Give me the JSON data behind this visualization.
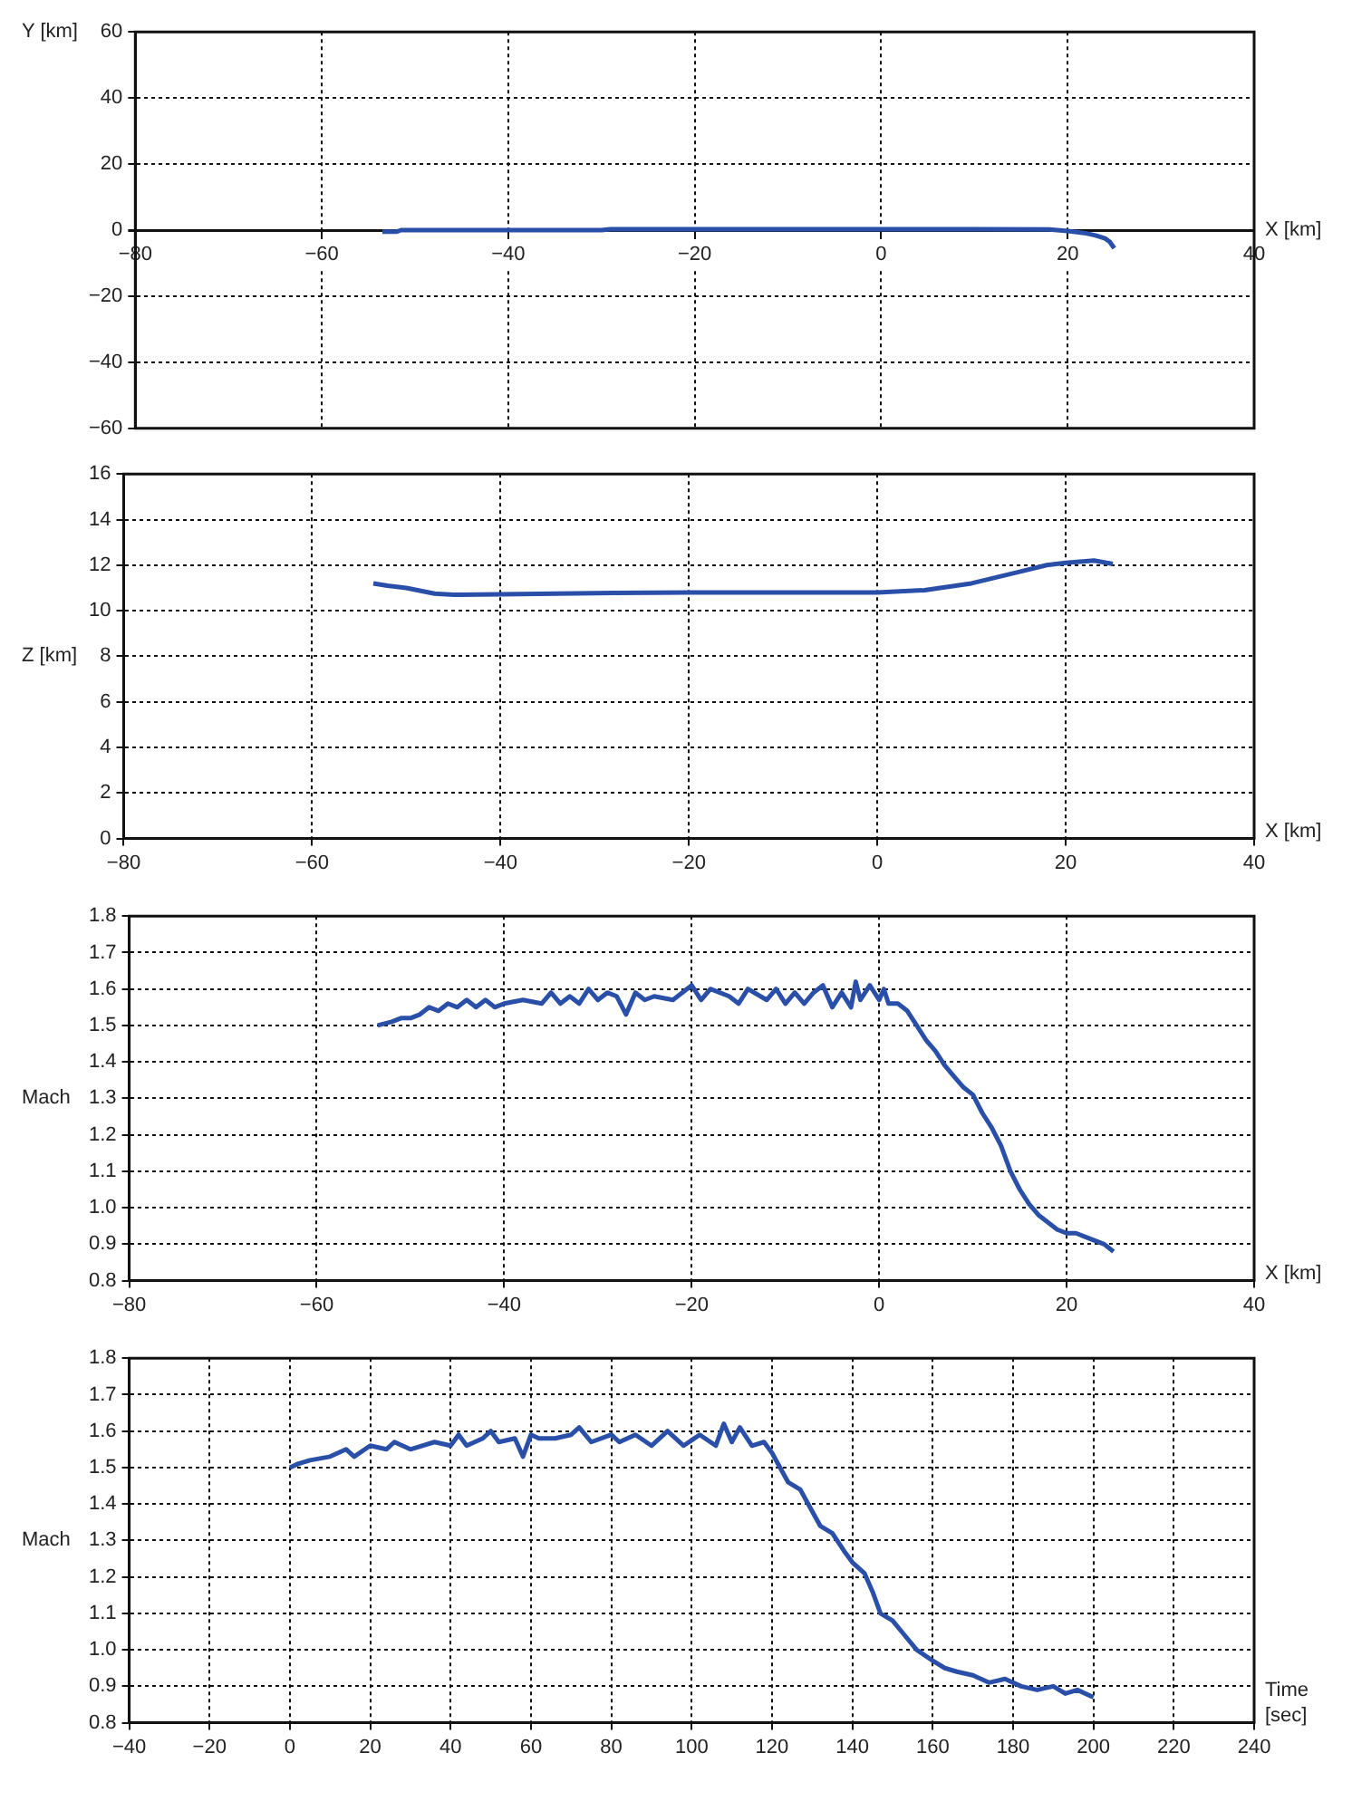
{
  "chart_data": [
    {
      "type": "line",
      "xlabel": "X [km]",
      "ylabel": "Y [km]",
      "xlim": [
        -80,
        40
      ],
      "xticks": [
        -80,
        -60,
        -40,
        -20,
        0,
        20,
        40
      ],
      "ylim": [
        -60,
        60
      ],
      "yticks": [
        -60,
        -40,
        -20,
        0,
        20,
        40,
        60
      ],
      "grid": true,
      "legend": false,
      "marker": "none",
      "line_style": "solid",
      "series": [
        {
          "color": "#2a4fa8",
          "x": [
            -53.5,
            -52,
            -51.5,
            -40,
            -30,
            -29,
            -10,
            0,
            10,
            18,
            20,
            21,
            22,
            23,
            24,
            24.5,
            25
          ],
          "values": [
            -0.5,
            -0.5,
            0,
            0,
            0,
            0.3,
            0.3,
            0.3,
            0.3,
            0.2,
            -0.3,
            -0.6,
            -1,
            -1.6,
            -2.5,
            -3.5,
            -5.5
          ]
        }
      ]
    },
    {
      "type": "line",
      "xlabel": "X [km]",
      "ylabel": "Z [km]",
      "xlim": [
        -80,
        40
      ],
      "xticks": [
        -80,
        -60,
        -40,
        -20,
        0,
        20,
        40
      ],
      "ylim": [
        0,
        16
      ],
      "yticks": [
        0,
        2,
        4,
        6,
        8,
        10,
        12,
        14,
        16
      ],
      "grid": true,
      "legend": false,
      "marker": "none",
      "line_style": "solid",
      "series": [
        {
          "color": "#2a4fa8",
          "x": [
            -53.5,
            -52,
            -50,
            -47,
            -45,
            -40,
            -28,
            -20,
            0,
            5,
            10,
            15,
            18,
            20,
            23,
            25
          ],
          "values": [
            11.2,
            11.1,
            11.0,
            10.75,
            10.7,
            10.72,
            10.78,
            10.8,
            10.8,
            10.9,
            11.2,
            11.7,
            12.0,
            12.1,
            12.2,
            12.05
          ]
        }
      ]
    },
    {
      "type": "line",
      "xlabel": "X [km]",
      "ylabel": "Mach",
      "xlim": [
        -80,
        40
      ],
      "xticks": [
        -80,
        -60,
        -40,
        -20,
        0,
        20,
        40
      ],
      "ylim": [
        0.8,
        1.8
      ],
      "yticks": [
        0.8,
        0.9,
        {
          "value": 1,
          "label": "1.0"
        },
        1.1,
        1.2,
        1.3,
        1.4,
        1.5,
        1.6,
        1.7,
        1.8
      ],
      "grid": true,
      "legend": false,
      "marker": "none",
      "line_style": "solid",
      "series": [
        {
          "color": "#2a4fa8",
          "x": [
            -53.5,
            -52,
            -51,
            -50,
            -49,
            -48,
            -47,
            -46,
            -45,
            -44,
            -43,
            -42,
            -41,
            -40,
            -38,
            -36,
            -35,
            -34,
            -33,
            -32,
            -31,
            -30,
            -29,
            -28,
            -27,
            -26,
            -25,
            -24,
            -22,
            -21,
            -20,
            -19,
            -18,
            -16,
            -15,
            -14,
            -12,
            -11,
            -10,
            -9,
            -8,
            -7,
            -6,
            -5,
            -4,
            -3,
            -2.5,
            -2,
            -1,
            0,
            0.5,
            1,
            2,
            3,
            4,
            5,
            6,
            7,
            8,
            9,
            10,
            11,
            12,
            13,
            14,
            15,
            16,
            17,
            18,
            19,
            20,
            21,
            22,
            23,
            24,
            25
          ],
          "values": [
            1.5,
            1.51,
            1.52,
            1.52,
            1.53,
            1.55,
            1.54,
            1.56,
            1.55,
            1.57,
            1.55,
            1.57,
            1.55,
            1.56,
            1.57,
            1.56,
            1.59,
            1.56,
            1.58,
            1.56,
            1.6,
            1.57,
            1.59,
            1.58,
            1.53,
            1.59,
            1.57,
            1.58,
            1.57,
            1.59,
            1.61,
            1.57,
            1.6,
            1.58,
            1.56,
            1.6,
            1.57,
            1.6,
            1.56,
            1.59,
            1.56,
            1.59,
            1.61,
            1.55,
            1.59,
            1.55,
            1.62,
            1.57,
            1.61,
            1.57,
            1.6,
            1.56,
            1.56,
            1.54,
            1.5,
            1.46,
            1.43,
            1.39,
            1.36,
            1.33,
            1.31,
            1.26,
            1.22,
            1.17,
            1.1,
            1.05,
            1.01,
            0.98,
            0.96,
            0.94,
            0.93,
            0.93,
            0.92,
            0.91,
            0.9,
            0.88
          ]
        }
      ]
    },
    {
      "type": "line",
      "xlabel": "Time [sec]",
      "ylabel": "Mach",
      "xlim": [
        -40,
        240
      ],
      "xticks": [
        -40,
        -20,
        0,
        20,
        40,
        60,
        80,
        100,
        120,
        140,
        160,
        180,
        200,
        220,
        240
      ],
      "ylim": [
        0.8,
        1.8
      ],
      "yticks": [
        0.8,
        0.9,
        {
          "value": 1,
          "label": "1.0"
        },
        1.1,
        1.2,
        1.3,
        1.4,
        1.5,
        1.6,
        1.7,
        1.8
      ],
      "grid": true,
      "legend": false,
      "marker": "none",
      "line_style": "solid",
      "series": [
        {
          "color": "#2a4fa8",
          "x": [
            0,
            2,
            5,
            10,
            14,
            16,
            20,
            24,
            26,
            30,
            36,
            40,
            42,
            44,
            48,
            50,
            52,
            56,
            58,
            60,
            62,
            66,
            70,
            72,
            75,
            80,
            82,
            86,
            90,
            94,
            98,
            102,
            106,
            108,
            110,
            112,
            115,
            118,
            120,
            122,
            124,
            127,
            130,
            132,
            135,
            138,
            140,
            143,
            145,
            147,
            150,
            153,
            156,
            160,
            163,
            166,
            170,
            174,
            178,
            182,
            186,
            190,
            193,
            196,
            200
          ],
          "values": [
            1.5,
            1.51,
            1.52,
            1.53,
            1.55,
            1.53,
            1.56,
            1.55,
            1.57,
            1.55,
            1.57,
            1.56,
            1.59,
            1.56,
            1.58,
            1.6,
            1.57,
            1.58,
            1.53,
            1.59,
            1.58,
            1.58,
            1.59,
            1.61,
            1.57,
            1.59,
            1.57,
            1.59,
            1.56,
            1.6,
            1.56,
            1.59,
            1.56,
            1.62,
            1.57,
            1.61,
            1.56,
            1.57,
            1.54,
            1.5,
            1.46,
            1.44,
            1.38,
            1.34,
            1.32,
            1.27,
            1.24,
            1.21,
            1.16,
            1.1,
            1.08,
            1.04,
            1.0,
            0.97,
            0.95,
            0.94,
            0.93,
            0.91,
            0.92,
            0.9,
            0.89,
            0.9,
            0.88,
            0.89,
            0.87
          ]
        }
      ]
    }
  ]
}
